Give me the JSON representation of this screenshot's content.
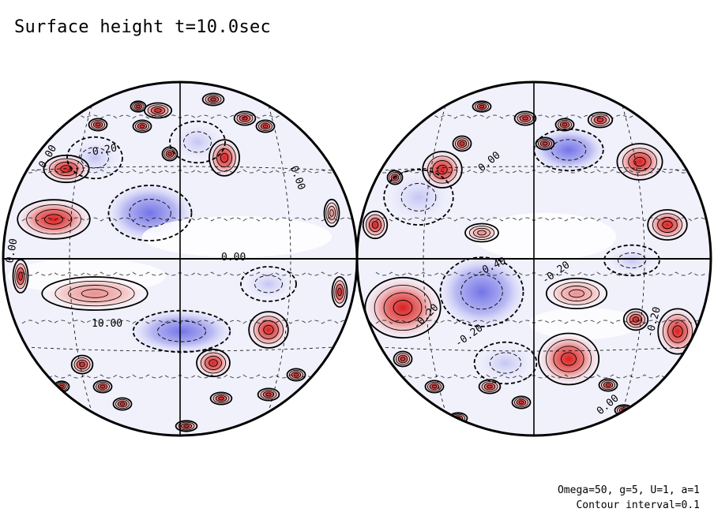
{
  "figure": {
    "title": "Surface height t=10.0sec",
    "params_line1": "Omega=50, g=5, U=1, a=1",
    "params_line2": "Contour interval=0.1"
  },
  "contour_labels": {
    "left": [
      "0.00",
      "-0.20",
      "0.00",
      "0.00",
      "10.00",
      "0.00"
    ],
    "right": [
      "0.00",
      "-0.40",
      "-0.20",
      "-0.20",
      "-0.20",
      "-0.20",
      "0.00"
    ]
  },
  "colors": {
    "positive": "#d94040",
    "positive_light": "#f4c8c8",
    "negative": "#6a6ae6",
    "negative_light": "#dcdcf8",
    "line": "#000000"
  }
}
